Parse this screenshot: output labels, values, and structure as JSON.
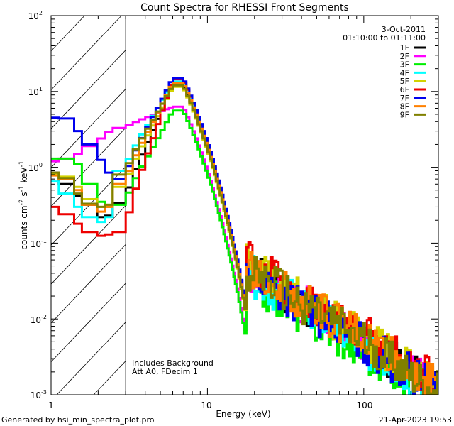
{
  "chart_data": {
    "type": "line",
    "title": "Count Spectra for RHESSI Front Segments",
    "xlabel": "Energy (keV)",
    "ylabel": "counts cm^-2 s^-1 keV^-1",
    "ylabel_parts": {
      "a": "counts cm",
      "e1": "-2",
      "b": " s",
      "e2": "-1",
      "c": " keV",
      "e3": "-1"
    },
    "xscale": "log",
    "yscale": "log",
    "xlim": [
      1,
      300
    ],
    "ylim": [
      0.001,
      100
    ],
    "x_tick_labels": [
      "1",
      "10",
      "100"
    ],
    "y_tick_labels": [
      {
        "base": "10",
        "exp": "2"
      },
      {
        "base": "10",
        "exp": "1"
      },
      {
        "base": "10",
        "exp": "0"
      },
      {
        "base": "10",
        "exp": "-1"
      },
      {
        "base": "10",
        "exp": "-2"
      },
      {
        "base": "10",
        "exp": "-3"
      }
    ],
    "legend_placement": "top-right",
    "legend_header": [
      "3-Oct-2011",
      "01:10:00 to 01:11:00"
    ],
    "annotations": [
      "Includes Background",
      "Att A0, FDecim 1"
    ],
    "excluded_region_keV": [
      1,
      3
    ],
    "series": [
      {
        "name": "1F",
        "color": "#000000",
        "low": [
          0.85,
          0.6,
          0.42,
          0.32,
          0.22,
          0.23,
          0.34
        ],
        "peak": 12.5,
        "tail_scale": 1.0
      },
      {
        "name": "2F",
        "color": "#ff00ff",
        "low": [
          1.2,
          1.3,
          1.5,
          1.9,
          2.4,
          2.9,
          3.3
        ],
        "peak": 6.3,
        "tail_scale": 1.0
      },
      {
        "name": "3F",
        "color": "#00ee00",
        "low": [
          1.3,
          1.3,
          1.1,
          0.6,
          0.35,
          0.3,
          0.32
        ],
        "peak": 5.6,
        "tail_scale": 0.75
      },
      {
        "name": "4F",
        "color": "#00ffff",
        "low": [
          0.65,
          0.45,
          0.3,
          0.22,
          0.19,
          0.22,
          0.9
        ],
        "peak": 13.5,
        "tail_scale": 0.9
      },
      {
        "name": "5F",
        "color": "#d2d200",
        "low": [
          0.8,
          0.75,
          0.55,
          0.38,
          0.3,
          0.32,
          0.55
        ],
        "peak": 11.5,
        "tail_scale": 1.15
      },
      {
        "name": "6F",
        "color": "#ee0000",
        "low": [
          0.3,
          0.24,
          0.18,
          0.14,
          0.125,
          0.13,
          0.14
        ],
        "peak": 14.5,
        "tail_scale": 1.3
      },
      {
        "name": "7F",
        "color": "#0000ee",
        "low": [
          4.5,
          4.4,
          3.0,
          2.0,
          1.25,
          0.85,
          0.7
        ],
        "peak": 15.0,
        "tail_scale": 0.95
      },
      {
        "name": "8F",
        "color": "#ff8000",
        "low": [
          0.78,
          0.7,
          0.5,
          0.32,
          0.26,
          0.3,
          0.6
        ],
        "peak": 13.0,
        "tail_scale": 1.1
      },
      {
        "name": "9F",
        "color": "#808000",
        "low": [
          0.85,
          0.72,
          0.45,
          0.33,
          0.3,
          0.32,
          0.8
        ],
        "peak": 12.0,
        "tail_scale": 1.0
      }
    ]
  },
  "footer": {
    "generated_by": "Generated by hsi_min_spectra_plot.pro",
    "timestamp": "21-Apr-2023 19:53"
  }
}
